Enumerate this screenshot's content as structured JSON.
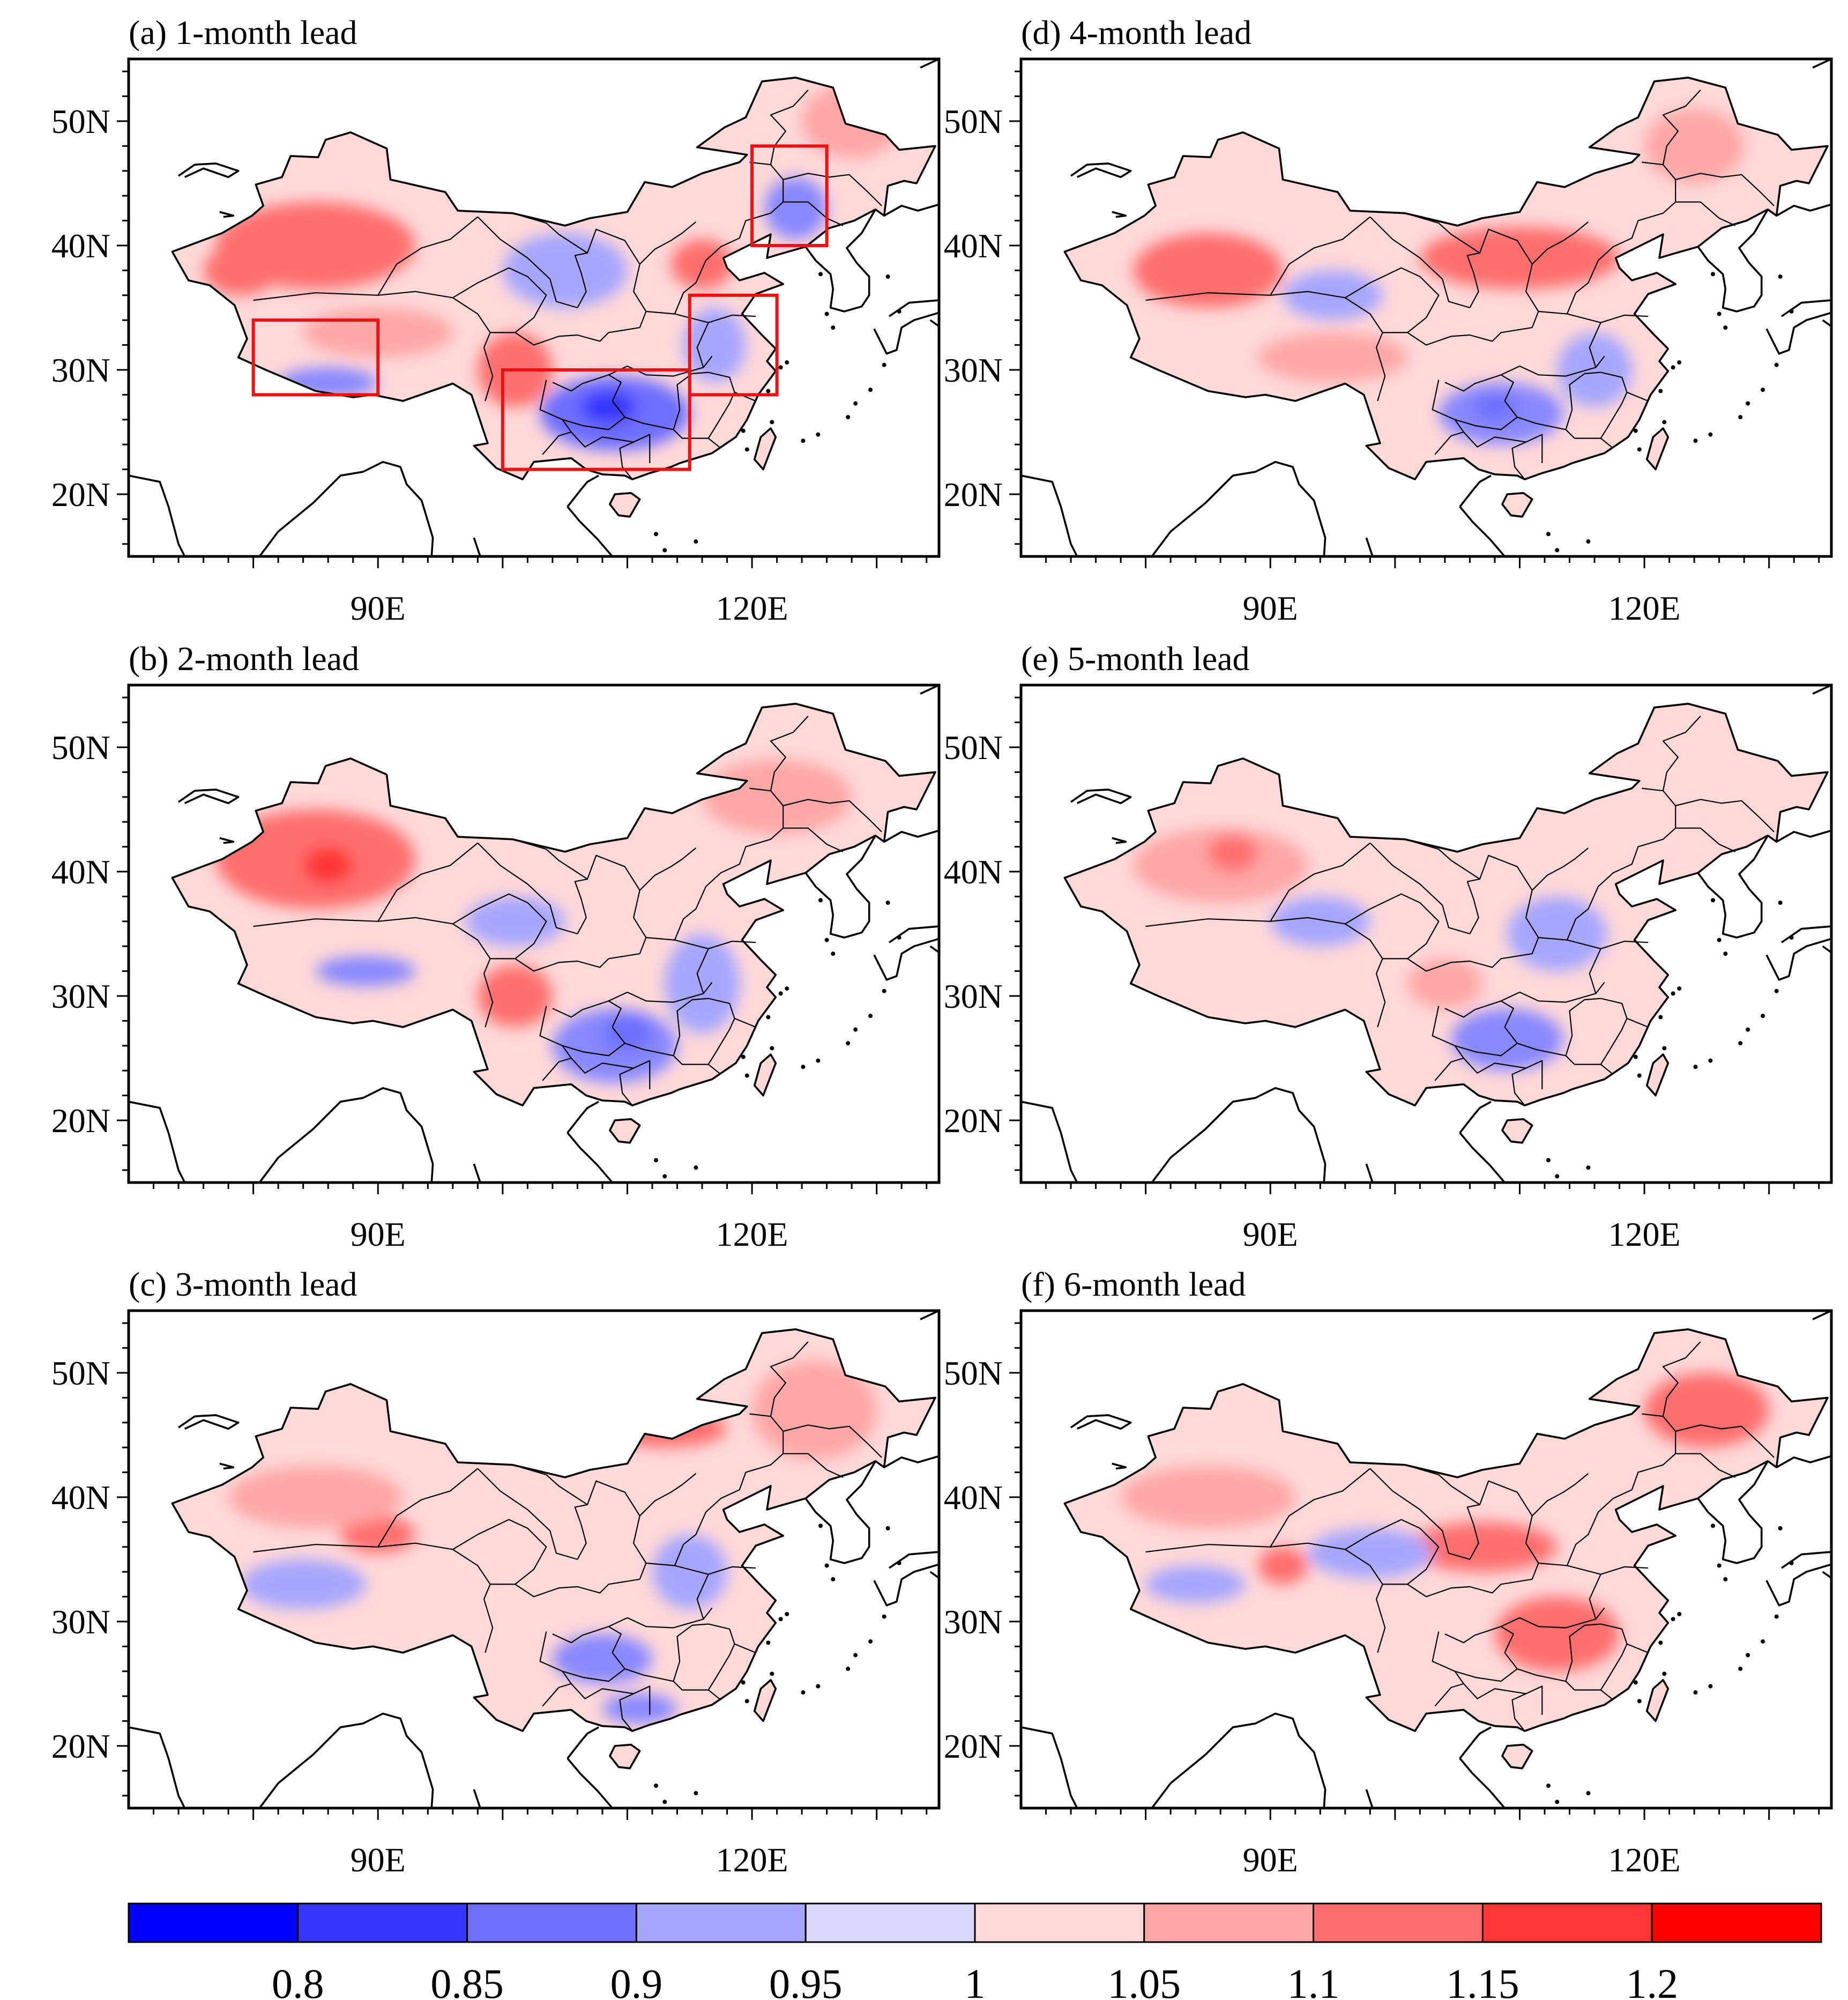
{
  "figure": {
    "panels": [
      {
        "id": "a",
        "title": "(a) 1-month lead",
        "col": 0,
        "row": 0,
        "blobs": [
          {
            "c": "red3",
            "lon": 85,
            "lat": 40,
            "rx": 8,
            "ry": 3.5
          },
          {
            "c": "red3",
            "lon": 79,
            "lat": 38,
            "rx": 3,
            "ry": 2
          },
          {
            "c": "red2",
            "lon": 90,
            "lat": 33,
            "rx": 6,
            "ry": 2
          },
          {
            "c": "red3",
            "lon": 101,
            "lat": 30,
            "rx": 3,
            "ry": 3
          },
          {
            "c": "blue4",
            "lon": 109,
            "lat": 26.5,
            "rx": 6,
            "ry": 3
          },
          {
            "c": "blue5",
            "lon": 108.5,
            "lat": 27,
            "rx": 2.2,
            "ry": 1.3
          },
          {
            "c": "blue3",
            "lon": 123.5,
            "lat": 43,
            "rx": 2.5,
            "ry": 2.5
          },
          {
            "c": "red3",
            "lon": 116,
            "lat": 38.5,
            "rx": 2.5,
            "ry": 2
          },
          {
            "c": "blue2",
            "lon": 105,
            "lat": 38,
            "rx": 5,
            "ry": 3
          },
          {
            "c": "blue2",
            "lon": 117,
            "lat": 32,
            "rx": 2.5,
            "ry": 3
          },
          {
            "c": "blue3",
            "lon": 86,
            "lat": 29,
            "rx": 4,
            "ry": 1.2
          },
          {
            "c": "red2",
            "lon": 128,
            "lat": 50,
            "rx": 4,
            "ry": 3
          }
        ],
        "boxes": [
          {
            "lon1": 80,
            "lon2": 90,
            "lat1": 28,
            "lat2": 34
          },
          {
            "lon1": 100,
            "lon2": 115,
            "lat1": 22,
            "lat2": 30
          },
          {
            "lon1": 115,
            "lon2": 122,
            "lat1": 28,
            "lat2": 36
          },
          {
            "lon1": 120,
            "lon2": 126,
            "lat1": 40,
            "lat2": 48
          }
        ]
      },
      {
        "id": "b",
        "title": "(b) 2-month lead",
        "col": 0,
        "row": 1,
        "blobs": [
          {
            "c": "red3",
            "lon": 85,
            "lat": 41,
            "rx": 8,
            "ry": 4
          },
          {
            "c": "red4",
            "lon": 86,
            "lat": 40.5,
            "rx": 2,
            "ry": 1.5
          },
          {
            "c": "blue3",
            "lon": 89,
            "lat": 32,
            "rx": 4,
            "ry": 1.2
          },
          {
            "c": "red3",
            "lon": 101,
            "lat": 30,
            "rx": 3,
            "ry": 2.5
          },
          {
            "c": "blue3",
            "lon": 109,
            "lat": 26,
            "rx": 5,
            "ry": 3
          },
          {
            "c": "blue4",
            "lon": 110,
            "lat": 27,
            "rx": 2,
            "ry": 1.5
          },
          {
            "c": "red2",
            "lon": 122,
            "lat": 46,
            "rx": 6,
            "ry": 3
          },
          {
            "c": "blue2",
            "lon": 116,
            "lat": 31,
            "rx": 3,
            "ry": 4
          },
          {
            "c": "blue2",
            "lon": 101,
            "lat": 36,
            "rx": 4,
            "ry": 2
          }
        ]
      },
      {
        "id": "c",
        "title": "(c) 3-month lead",
        "col": 0,
        "row": 2,
        "blobs": [
          {
            "c": "red3",
            "lon": 113,
            "lat": 45.5,
            "rx": 5,
            "ry": 1.5
          },
          {
            "c": "red2",
            "lon": 125,
            "lat": 47,
            "rx": 5,
            "ry": 4
          },
          {
            "c": "red3",
            "lon": 90,
            "lat": 37,
            "rx": 3,
            "ry": 1.5
          },
          {
            "c": "blue2",
            "lon": 84,
            "lat": 33,
            "rx": 5,
            "ry": 2
          },
          {
            "c": "blue3",
            "lon": 108,
            "lat": 27,
            "rx": 4,
            "ry": 2
          },
          {
            "c": "blue3",
            "lon": 111,
            "lat": 23,
            "rx": 3,
            "ry": 1.2
          },
          {
            "c": "blue2",
            "lon": 115,
            "lat": 34,
            "rx": 3,
            "ry": 3
          },
          {
            "c": "red2",
            "lon": 85,
            "lat": 40,
            "rx": 7,
            "ry": 2.5
          }
        ]
      },
      {
        "id": "d",
        "title": "(d) 4-month lead",
        "col": 1,
        "row": 0,
        "blobs": [
          {
            "c": "red3",
            "lon": 85,
            "lat": 38,
            "rx": 6,
            "ry": 3
          },
          {
            "c": "red3",
            "lon": 110,
            "lat": 39,
            "rx": 8,
            "ry": 2.5
          },
          {
            "c": "red2",
            "lon": 95,
            "lat": 31,
            "rx": 6,
            "ry": 2
          },
          {
            "c": "blue3",
            "lon": 108.5,
            "lat": 26.5,
            "rx": 5,
            "ry": 2.5
          },
          {
            "c": "blue4",
            "lon": 108,
            "lat": 27,
            "rx": 1.8,
            "ry": 1
          },
          {
            "c": "blue2",
            "lon": 95,
            "lat": 36,
            "rx": 4,
            "ry": 2
          },
          {
            "c": "red2",
            "lon": 124,
            "lat": 48,
            "rx": 4,
            "ry": 3
          },
          {
            "c": "blue2",
            "lon": 116,
            "lat": 30,
            "rx": 3,
            "ry": 3
          }
        ]
      },
      {
        "id": "e",
        "title": "(e) 5-month lead",
        "col": 1,
        "row": 1,
        "blobs": [
          {
            "c": "red2",
            "lon": 86,
            "lat": 40.5,
            "rx": 7,
            "ry": 3
          },
          {
            "c": "red3",
            "lon": 87,
            "lat": 41.5,
            "rx": 2,
            "ry": 1.5
          },
          {
            "c": "blue3",
            "lon": 109,
            "lat": 26.5,
            "rx": 4.5,
            "ry": 2.5
          },
          {
            "c": "blue2",
            "lon": 113,
            "lat": 35,
            "rx": 4,
            "ry": 3
          },
          {
            "c": "red2",
            "lon": 104,
            "lat": 31,
            "rx": 3,
            "ry": 2
          },
          {
            "c": "blue2",
            "lon": 94,
            "lat": 36,
            "rx": 4,
            "ry": 2
          }
        ]
      },
      {
        "id": "f",
        "title": "(f) 6-month lead",
        "col": 1,
        "row": 2,
        "blobs": [
          {
            "c": "red3",
            "lon": 125,
            "lat": 47,
            "rx": 5,
            "ry": 3
          },
          {
            "c": "red3",
            "lon": 113,
            "lat": 29,
            "rx": 5,
            "ry": 3
          },
          {
            "c": "red3",
            "lon": 107,
            "lat": 36,
            "rx": 6,
            "ry": 2
          },
          {
            "c": "blue2",
            "lon": 98,
            "lat": 35.5,
            "rx": 5,
            "ry": 2
          },
          {
            "c": "blue2",
            "lon": 84,
            "lat": 33,
            "rx": 4,
            "ry": 1.5
          },
          {
            "c": "red2",
            "lon": 85,
            "lat": 40,
            "rx": 7,
            "ry": 2.5
          },
          {
            "c": "red3",
            "lon": 91,
            "lat": 34.5,
            "rx": 2,
            "ry": 1.5
          }
        ]
      }
    ],
    "axes": {
      "lon_range": [
        70,
        135
      ],
      "lat_range": [
        15,
        55
      ],
      "lat_ticks": [
        {
          "v": 20,
          "label": "20N"
        },
        {
          "v": 30,
          "label": "30N"
        },
        {
          "v": 40,
          "label": "40N"
        },
        {
          "v": 50,
          "label": "50N"
        }
      ],
      "lon_ticks": [
        {
          "v": 90,
          "label": "90E"
        },
        {
          "v": 120,
          "label": "120E"
        }
      ]
    },
    "colorbar": {
      "colors": [
        "#0000ff",
        "#3636ff",
        "#6e6eff",
        "#a6a6ff",
        "#d8d8ff",
        "#ffd8d8",
        "#ffa6a6",
        "#ff6e6e",
        "#ff3636",
        "#ff0000"
      ],
      "labels": [
        "0.8",
        "0.85",
        "0.9",
        "0.95",
        "1",
        "1.05",
        "1.1",
        "1.15",
        "1.2"
      ]
    },
    "shade_colors": {
      "blue5": "#3636ff",
      "blue4": "#6e6eff",
      "blue3": "#8888ff",
      "blue2": "#a6a6ff",
      "blue1": "#d8d8ff",
      "red1": "#ffd8d8",
      "red2": "#ffa6a6",
      "red3": "#ff6e6e",
      "red4": "#ff3636"
    },
    "box_color": "#ee1111"
  }
}
